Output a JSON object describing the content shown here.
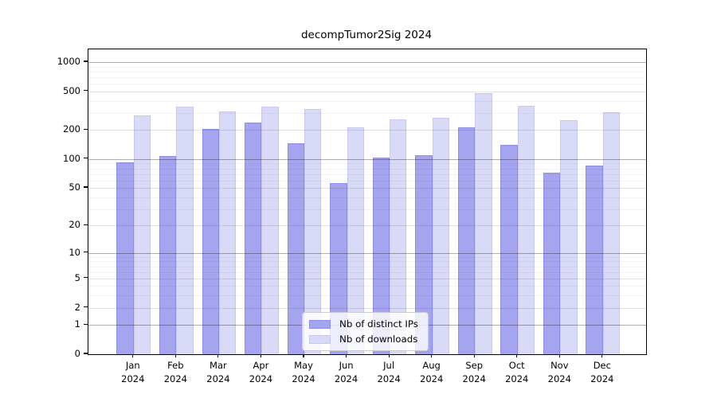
{
  "title": "decompTumor2Sig 2024",
  "chart_data": {
    "type": "bar",
    "title": "decompTumor2Sig 2024",
    "categories": [
      "Jan",
      "Feb",
      "Mar",
      "Apr",
      "May",
      "Jun",
      "Jul",
      "Aug",
      "Sep",
      "Oct",
      "Nov",
      "Dec"
    ],
    "year_label": "2024",
    "series": [
      {
        "name": "Nb of distinct IPs",
        "color": "#a5a5ef",
        "values": [
          92,
          108,
          205,
          238,
          147,
          56,
          104,
          110,
          214,
          139,
          72,
          85
        ]
      },
      {
        "name": "Nb of downloads",
        "color": "#d9d9f8",
        "values": [
          285,
          350,
          310,
          350,
          330,
          214,
          258,
          268,
          475,
          355,
          253,
          305
        ]
      }
    ],
    "xlabel": "",
    "ylabel": "",
    "yscale": "log(x+1)",
    "yticks": [
      0,
      1,
      2,
      5,
      10,
      20,
      50,
      100,
      200,
      500,
      1000
    ],
    "ylim": [
      0,
      1350
    ],
    "grid": true,
    "legend_position": "lower center",
    "colors": {
      "major_gridline": "#adadad",
      "mid_gridline": "#e3e3e3",
      "minor_gridline": "#f2f2f2",
      "axis": "#000000"
    }
  }
}
